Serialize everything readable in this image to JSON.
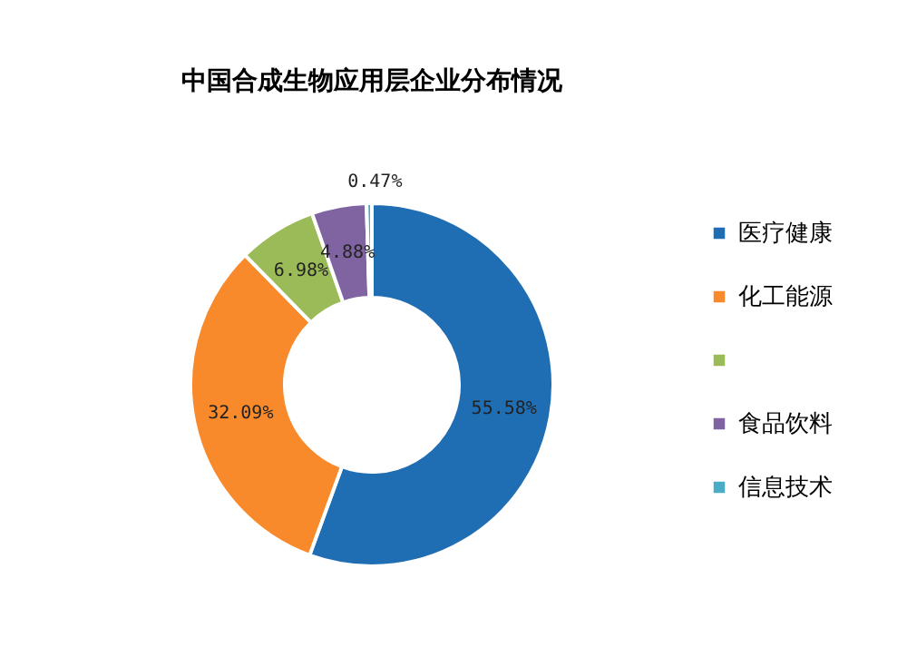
{
  "chart_data": {
    "type": "donut",
    "title": "中国合成生物应用层企业分布情况",
    "categories": [
      "医疗健康",
      "化工能源",
      null,
      "食品饮料",
      "信息技术"
    ],
    "values": [
      55.58,
      32.09,
      6.98,
      4.88,
      0.47
    ],
    "colors": [
      "#1f6db3",
      "#f98a2c",
      "#9bbb59",
      "#8064a2",
      "#4bacc6"
    ],
    "value_labels": [
      "55.58%",
      "32.09%",
      "6.98%",
      "4.88%",
      "0.47%"
    ],
    "legend": "right"
  }
}
